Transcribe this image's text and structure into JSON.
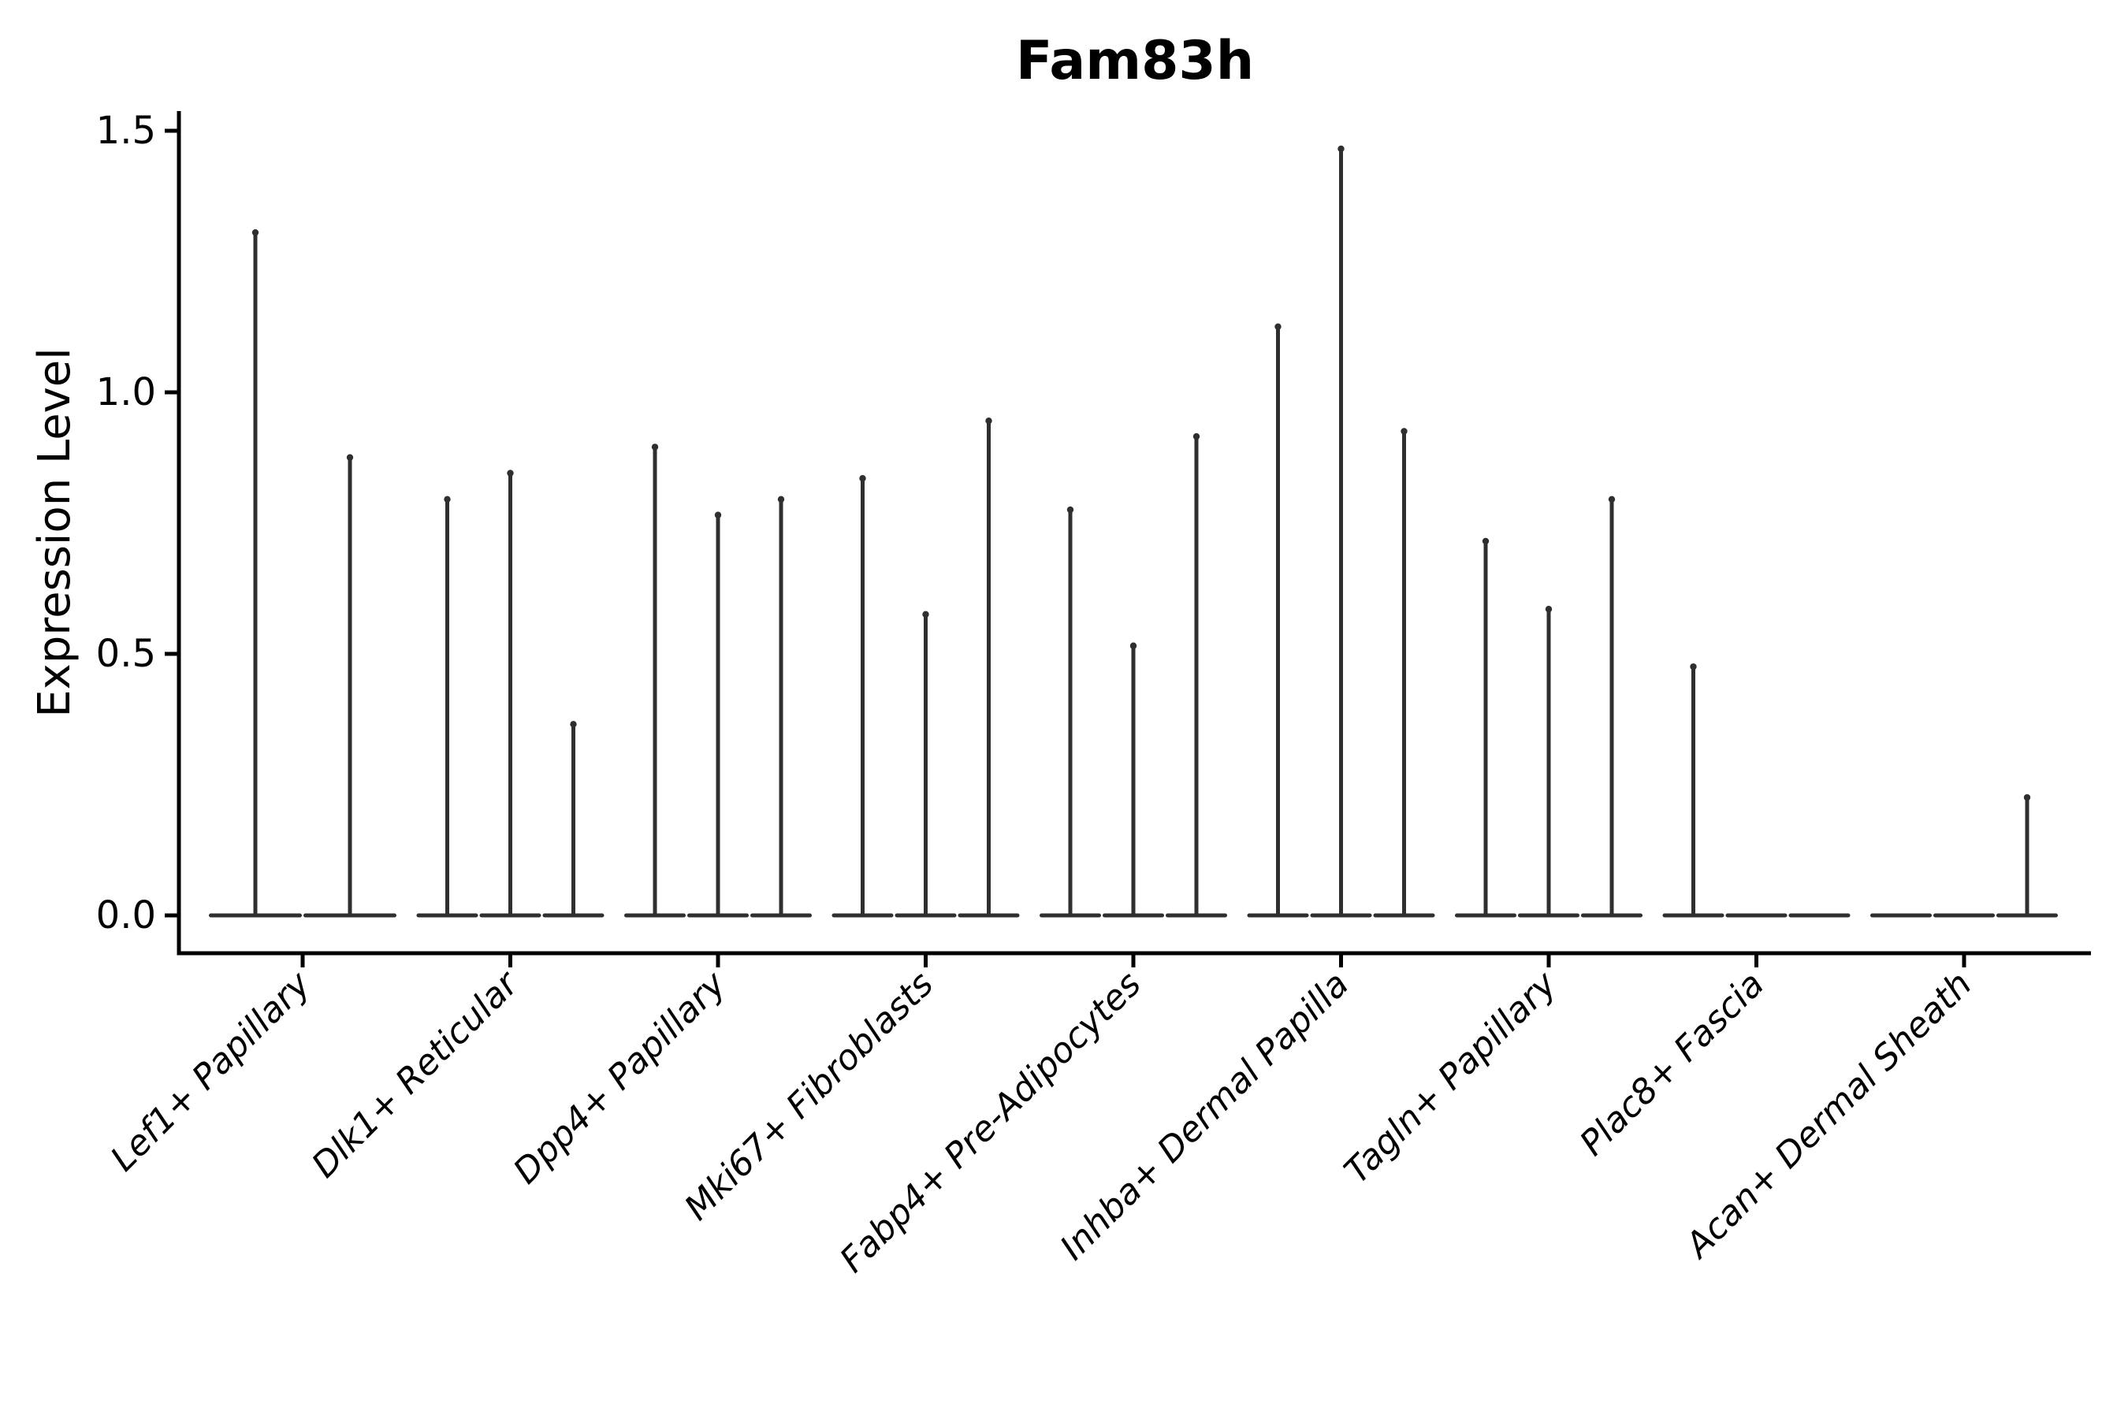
{
  "title": "Fam83h",
  "axes": {
    "ylabel": "Expression Level",
    "ytick_labels": [
      "0.0",
      "0.5",
      "1.0",
      "1.5"
    ]
  },
  "chart_data": {
    "type": "violin",
    "title": "Fam83h",
    "xlabel": "",
    "ylabel": "Expression Level",
    "ylim": [
      0,
      1.5
    ],
    "yticks": [
      0.0,
      0.5,
      1.0,
      1.5
    ],
    "grid": false,
    "legend": "none",
    "description": "Single-gene expression violin plot; each category shows thin spike-like violins (most cells at 0, max expression at spike top). Violin max values per category listed in groups.",
    "categories": [
      "Lef1+ Papillary",
      "Dlk1+ Reticular",
      "Dpp4+ Papillary",
      "Mki67+ Fibroblasts",
      "Fabp4+ Pre-Adipocytes",
      "Inhba+ Dermal Papilla",
      "Tagln+ Papillary",
      "Plac8+ Fascia",
      "Acan+ Dermal Sheath"
    ],
    "groups": [
      {
        "label": "Lef1+ Papillary",
        "violin_max_values": [
          1.31,
          0.88
        ]
      },
      {
        "label": "Dlk1+ Reticular",
        "violin_max_values": [
          0.8,
          0.85,
          0.37
        ]
      },
      {
        "label": "Dpp4+ Papillary",
        "violin_max_values": [
          0.9,
          0.77,
          0.8
        ]
      },
      {
        "label": "Mki67+ Fibroblasts",
        "violin_max_values": [
          0.84,
          0.58,
          0.95
        ]
      },
      {
        "label": "Fabp4+ Pre-Adipocytes",
        "violin_max_values": [
          0.78,
          0.52,
          0.92
        ]
      },
      {
        "label": "Inhba+ Dermal Papilla",
        "violin_max_values": [
          1.13,
          1.47,
          0.93
        ]
      },
      {
        "label": "Tagln+ Papillary",
        "violin_max_values": [
          0.72,
          0.59,
          0.8
        ]
      },
      {
        "label": "Plac8+ Fascia",
        "violin_max_values": [
          0.48,
          0.0,
          0.0
        ]
      },
      {
        "label": "Acan+ Dermal Sheath",
        "violin_max_values": [
          0.0,
          0.0,
          0.23
        ]
      }
    ],
    "colors": {
      "violin": "#2f2f2f",
      "axis": "#000000",
      "background": "#ffffff"
    }
  }
}
